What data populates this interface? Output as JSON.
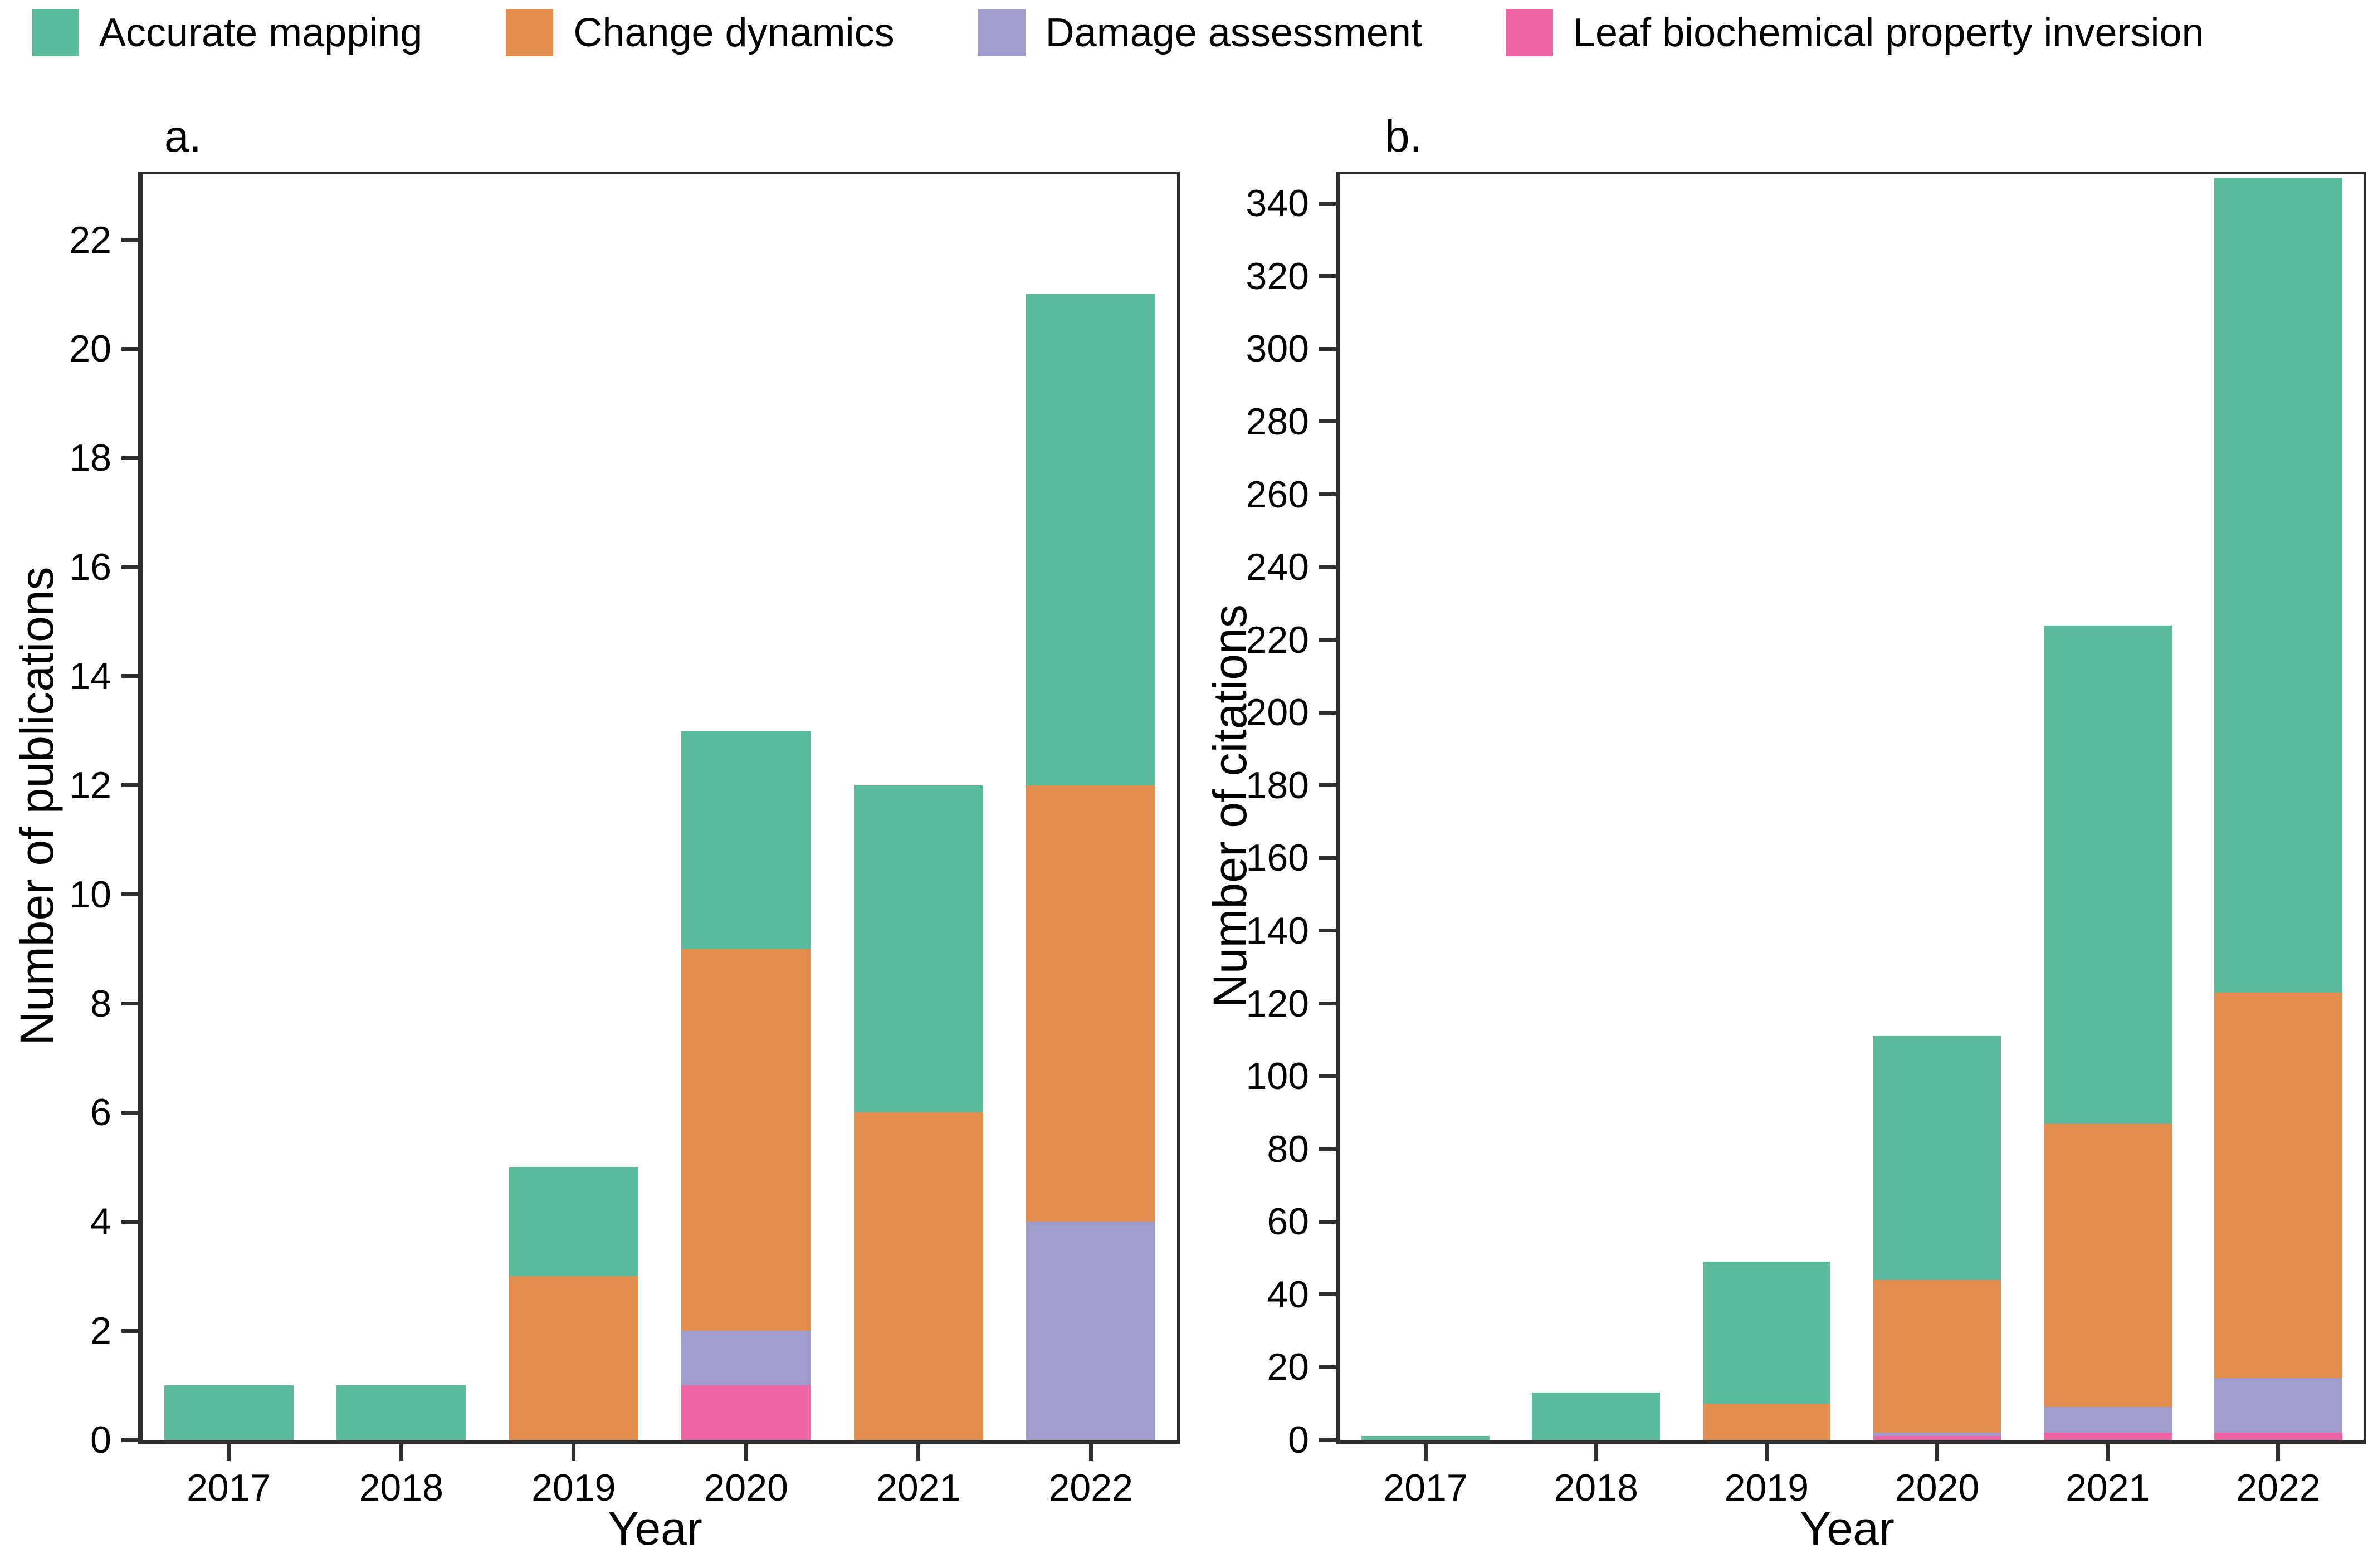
{
  "legend": {
    "items": [
      {
        "name": "accurate-mapping",
        "label": "Accurate mapping",
        "color": "#5cbb9d"
      },
      {
        "name": "change-dynamics",
        "label": "Change dynamics",
        "color": "#e28e4f"
      },
      {
        "name": "damage-assessment",
        "label": "Damage assessment",
        "color": "#a09ccb"
      },
      {
        "name": "leaf-inversion",
        "label": "Leaf biochemical property inversion",
        "color": "#ef64a4"
      }
    ]
  },
  "chart_data": [
    {
      "id": "a",
      "type": "bar",
      "stacked": true,
      "title": "a.",
      "xlabel": "Year",
      "ylabel": "Number of publications",
      "categories": [
        "2017",
        "2018",
        "2019",
        "2020",
        "2021",
        "2022"
      ],
      "yticks": [
        0,
        2,
        4,
        6,
        8,
        10,
        12,
        14,
        16,
        18,
        20,
        22
      ],
      "ylim": [
        0,
        23.2
      ],
      "grid": false,
      "legend_position": "top",
      "stack_order_bottom_to_top": [
        "Leaf biochemical property inversion",
        "Damage assessment",
        "Change dynamics",
        "Accurate mapping"
      ],
      "series": [
        {
          "name": "Accurate mapping",
          "values": [
            1,
            1,
            2,
            4,
            6,
            9
          ]
        },
        {
          "name": "Change dynamics",
          "values": [
            0,
            0,
            3,
            7,
            6,
            8
          ]
        },
        {
          "name": "Damage assessment",
          "values": [
            0,
            0,
            0,
            1,
            0,
            4
          ]
        },
        {
          "name": "Leaf biochemical property inversion",
          "values": [
            0,
            0,
            0,
            1,
            0,
            0
          ]
        }
      ],
      "totals": [
        1,
        1,
        5,
        13,
        12,
        21
      ]
    },
    {
      "id": "b",
      "type": "bar",
      "stacked": true,
      "title": "b.",
      "xlabel": "Year",
      "ylabel": "Number of citations",
      "categories": [
        "2017",
        "2018",
        "2019",
        "2020",
        "2021",
        "2022"
      ],
      "yticks": [
        0,
        20,
        40,
        60,
        80,
        100,
        120,
        140,
        160,
        180,
        200,
        220,
        240,
        260,
        280,
        300,
        320,
        340
      ],
      "ylim": [
        0,
        348
      ],
      "grid": false,
      "legend_position": "top",
      "stack_order_bottom_to_top": [
        "Leaf biochemical property inversion",
        "Damage assessment",
        "Change dynamics",
        "Accurate mapping"
      ],
      "series": [
        {
          "name": "Accurate mapping",
          "values": [
            1,
            13,
            39,
            67,
            137,
            224
          ]
        },
        {
          "name": "Change dynamics",
          "values": [
            0,
            0,
            10,
            42,
            78,
            106
          ]
        },
        {
          "name": "Damage assessment",
          "values": [
            0,
            0,
            0,
            1,
            7,
            15
          ]
        },
        {
          "name": "Leaf biochemical property inversion",
          "values": [
            0,
            0,
            0,
            1,
            2,
            2
          ]
        }
      ],
      "totals": [
        1,
        13,
        49,
        111,
        224,
        347
      ]
    }
  ]
}
